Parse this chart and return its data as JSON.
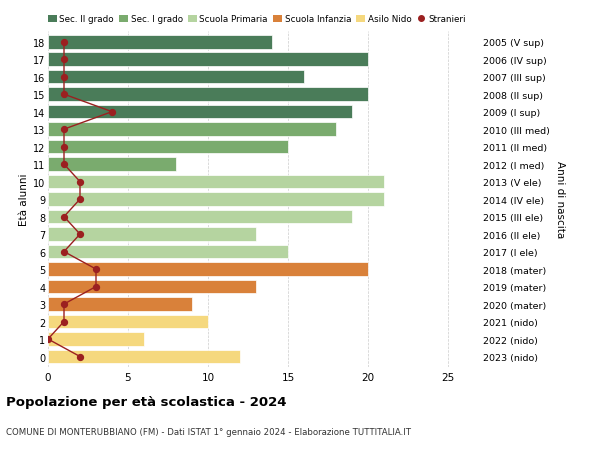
{
  "ages": [
    18,
    17,
    16,
    15,
    14,
    13,
    12,
    11,
    10,
    9,
    8,
    7,
    6,
    5,
    4,
    3,
    2,
    1,
    0
  ],
  "right_labels": [
    "2005 (V sup)",
    "2006 (IV sup)",
    "2007 (III sup)",
    "2008 (II sup)",
    "2009 (I sup)",
    "2010 (III med)",
    "2011 (II med)",
    "2012 (I med)",
    "2013 (V ele)",
    "2014 (IV ele)",
    "2015 (III ele)",
    "2016 (II ele)",
    "2017 (I ele)",
    "2018 (mater)",
    "2019 (mater)",
    "2020 (mater)",
    "2021 (nido)",
    "2022 (nido)",
    "2023 (nido)"
  ],
  "bar_values": [
    14,
    20,
    16,
    20,
    19,
    18,
    15,
    8,
    21,
    21,
    19,
    13,
    15,
    20,
    13,
    9,
    10,
    6,
    12
  ],
  "bar_colors": [
    "#4a7c59",
    "#4a7c59",
    "#4a7c59",
    "#4a7c59",
    "#4a7c59",
    "#7aab6e",
    "#7aab6e",
    "#7aab6e",
    "#b5d4a0",
    "#b5d4a0",
    "#b5d4a0",
    "#b5d4a0",
    "#b5d4a0",
    "#d9813a",
    "#d9813a",
    "#d9813a",
    "#f5d87e",
    "#f5d87e",
    "#f5d87e"
  ],
  "stranieri_values": [
    1,
    1,
    1,
    1,
    4,
    1,
    1,
    1,
    2,
    2,
    1,
    2,
    1,
    3,
    3,
    1,
    1,
    0,
    2
  ],
  "legend_labels": [
    "Sec. II grado",
    "Sec. I grado",
    "Scuola Primaria",
    "Scuola Infanzia",
    "Asilo Nido",
    "Stranieri"
  ],
  "legend_colors": [
    "#4a7c59",
    "#7aab6e",
    "#b5d4a0",
    "#d9813a",
    "#f5d87e",
    "#c0392b"
  ],
  "title": "Popolazione per età scolastica - 2024",
  "subtitle": "COMUNE DI MONTERUBBIANO (FM) - Dati ISTAT 1° gennaio 2024 - Elaborazione TUTTITALIA.IT",
  "ylabel_left": "Età alunni",
  "ylabel_right": "Anni di nascita",
  "xlim": [
    0,
    27
  ],
  "xticks": [
    0,
    5,
    10,
    15,
    20,
    25
  ],
  "background_color": "#ffffff",
  "grid_color": "#cccccc",
  "stranieri_color": "#9b2020",
  "bar_height": 0.78
}
